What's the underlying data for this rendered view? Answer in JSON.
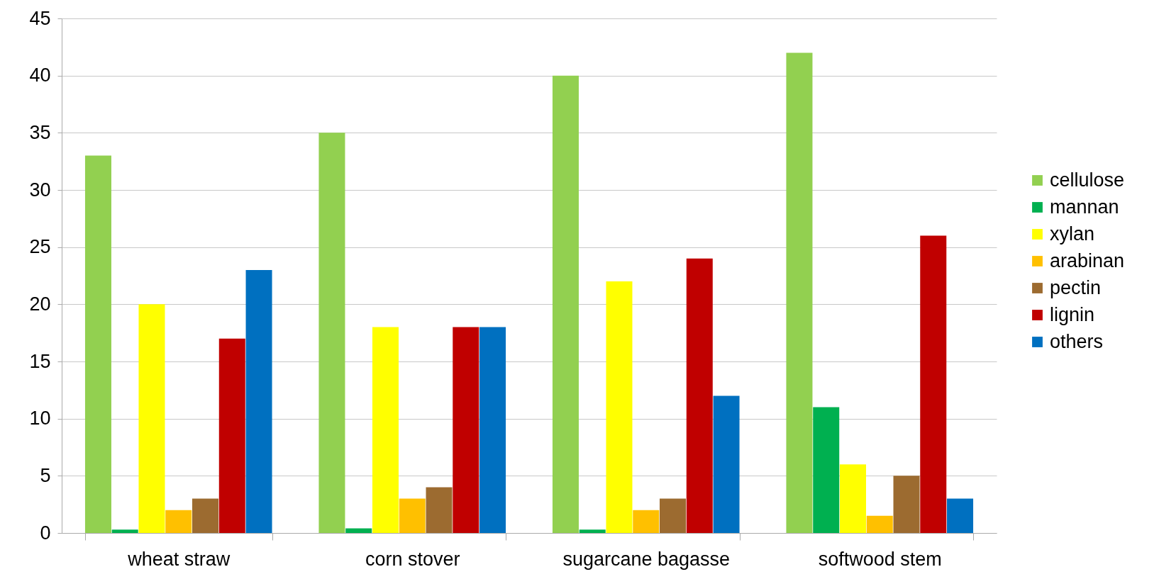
{
  "chart_data": {
    "type": "bar",
    "categories": [
      "wheat straw",
      "corn stover",
      "sugarcane bagasse",
      "softwood stem"
    ],
    "series": [
      {
        "name": "cellulose",
        "color": "#92d050",
        "values": [
          33,
          35,
          40,
          42
        ]
      },
      {
        "name": "mannan",
        "color": "#00b050",
        "values": [
          0.3,
          0.4,
          0.3,
          11
        ]
      },
      {
        "name": "xylan",
        "color": "#ffff00",
        "values": [
          20,
          18,
          22,
          6
        ]
      },
      {
        "name": "arabinan",
        "color": "#ffc000",
        "values": [
          2,
          3,
          2,
          1.5
        ]
      },
      {
        "name": "pectin",
        "color": "#9c6b30",
        "values": [
          3,
          4,
          3,
          5
        ]
      },
      {
        "name": "lignin",
        "color": "#c00000",
        "values": [
          17,
          18,
          24,
          26
        ]
      },
      {
        "name": "others",
        "color": "#0070c0",
        "values": [
          23,
          18,
          12,
          3
        ]
      }
    ],
    "ylim": [
      0,
      45
    ],
    "yticks": [
      0,
      5,
      10,
      15,
      20,
      25,
      30,
      35,
      40,
      45
    ],
    "grid": "y",
    "legend": "right"
  }
}
